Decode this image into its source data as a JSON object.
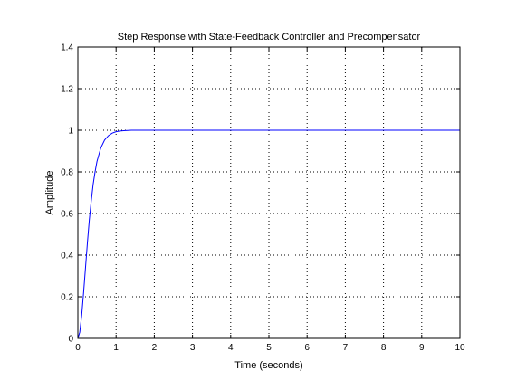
{
  "chart_data": {
    "type": "line",
    "title": "Step Response with State-Feedback Controller and Precompensator",
    "xlabel": "Time (seconds)",
    "ylabel": "Amplitude",
    "xlim": [
      0,
      10
    ],
    "ylim": [
      0,
      1.4
    ],
    "xticks": [
      "0",
      "1",
      "2",
      "3",
      "4",
      "5",
      "6",
      "7",
      "8",
      "9",
      "10"
    ],
    "yticks": [
      "0",
      "0.2",
      "0.4",
      "0.6",
      "0.8",
      "1",
      "1.2",
      "1.4"
    ],
    "grid": true,
    "colors": {
      "line": "#0000ff",
      "axes": "#000000",
      "grid": "#000000",
      "background": "#ffffff"
    },
    "series": [
      {
        "x": [
          0,
          0.05,
          0.1,
          0.15,
          0.2,
          0.25,
          0.3,
          0.35,
          0.4,
          0.45,
          0.5,
          0.6,
          0.7,
          0.8,
          0.9,
          1.0,
          1.1,
          1.2,
          1.3,
          1.4,
          1.5,
          1.7,
          2.0,
          3.0,
          4.0,
          5.0,
          6.0,
          7.0,
          8.0,
          9.0,
          10.0
        ],
        "y": [
          0,
          0.03,
          0.11,
          0.22,
          0.34,
          0.46,
          0.57,
          0.66,
          0.74,
          0.8,
          0.85,
          0.915,
          0.953,
          0.974,
          0.986,
          0.993,
          0.996,
          0.998,
          0.999,
          1.0,
          1.0,
          1.0,
          1.0,
          1.0,
          1.0,
          1.0,
          1.0,
          1.0,
          1.0,
          1.0,
          1.0
        ]
      }
    ]
  }
}
